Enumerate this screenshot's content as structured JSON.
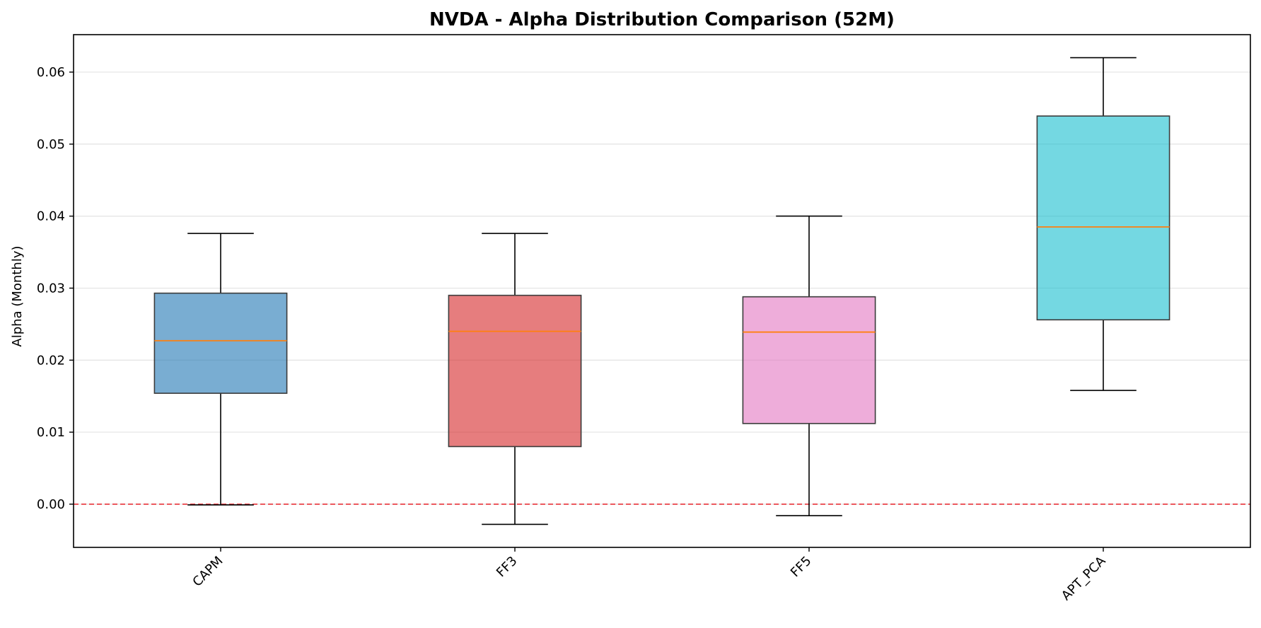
{
  "chart_data": {
    "type": "box",
    "title": "NVDA - Alpha Distribution Comparison (52M)",
    "xlabel": "",
    "ylabel": "Alpha (Monthly)",
    "ylim": [
      -0.006,
      0.0652
    ],
    "yticks": [
      0.0,
      0.01,
      0.02,
      0.03,
      0.04,
      0.05,
      0.06
    ],
    "ytick_labels": [
      "0.00",
      "0.01",
      "0.02",
      "0.03",
      "0.04",
      "0.05",
      "0.06"
    ],
    "grid": "y",
    "reference_line": {
      "y": 0.0,
      "color": "#e8333a",
      "style": "dashed"
    },
    "median_color": "#ff7f0e",
    "categories": [
      "CAPM",
      "FF3",
      "FF5",
      "APT_PCA"
    ],
    "boxes": [
      {
        "name": "CAPM",
        "whisker_low": -0.0001,
        "q1": 0.0154,
        "median": 0.0227,
        "q3": 0.0293,
        "whisker_high": 0.0376,
        "color": "#1f77b4"
      },
      {
        "name": "FF3",
        "whisker_low": -0.0028,
        "q1": 0.008,
        "median": 0.024,
        "q3": 0.029,
        "whisker_high": 0.0376,
        "color": "#d62728"
      },
      {
        "name": "FF5",
        "whisker_low": -0.0016,
        "q1": 0.0112,
        "median": 0.0239,
        "q3": 0.0288,
        "whisker_high": 0.04,
        "color": "#e377c2"
      },
      {
        "name": "APT_PCA",
        "whisker_low": 0.0158,
        "q1": 0.0256,
        "median": 0.0385,
        "q3": 0.0539,
        "whisker_high": 0.062,
        "color": "#17becf"
      }
    ]
  }
}
